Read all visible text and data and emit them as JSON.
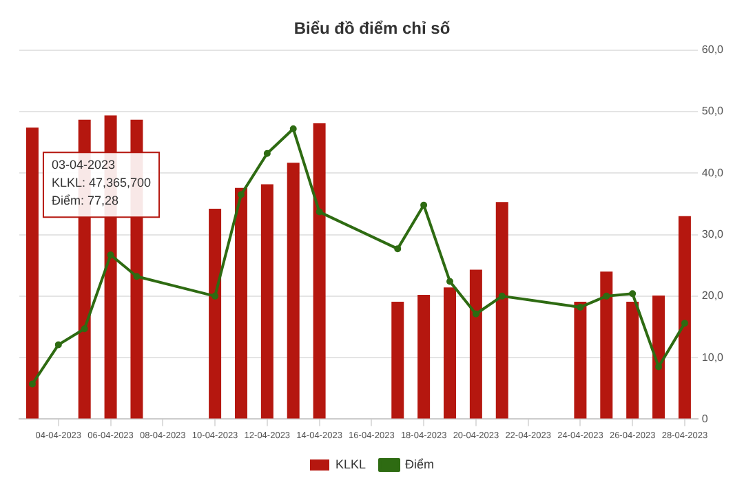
{
  "chart_data": {
    "type": "bar",
    "title": "Biểu đồ điểm chỉ số",
    "x": [
      "2023-04-03",
      "2023-04-04",
      "2023-04-05",
      "2023-04-06",
      "2023-04-07",
      "2023-04-10",
      "2023-04-11",
      "2023-04-12",
      "2023-04-13",
      "2023-04-14",
      "2023-04-17",
      "2023-04-18",
      "2023-04-19",
      "2023-04-20",
      "2023-04-21",
      "2023-04-24",
      "2023-04-25",
      "2023-04-26",
      "2023-04-27",
      "2023-04-28"
    ],
    "series": [
      {
        "name": "KLKL",
        "color": "#b5170f",
        "values": [
          47.4,
          null,
          48.7,
          49.4,
          48.7,
          34.2,
          37.6,
          38.2,
          41.7,
          48.1,
          19.1,
          20.2,
          21.4,
          24.3,
          35.3,
          19.1,
          24.0,
          19.1,
          20.1,
          33.0
        ]
      },
      {
        "name": "Điểm",
        "type": "line",
        "color": "#2e6b12",
        "marker": "circle",
        "values": [
          5.7,
          12.1,
          14.7,
          26.7,
          23.2,
          20.0,
          36.5,
          43.2,
          47.2,
          33.7,
          27.7,
          34.8,
          22.4,
          17.1,
          20.0,
          18.2,
          20.0,
          20.4,
          8.5,
          15.6
        ]
      }
    ],
    "xlim": [
      "2023-04-02T12:00",
      "2023-04-28T12:00"
    ],
    "xticks": [
      {
        "value": "2023-04-04",
        "label": "04-04-2023"
      },
      {
        "value": "2023-04-06",
        "label": "06-04-2023"
      },
      {
        "value": "2023-04-08",
        "label": "08-04-2023"
      },
      {
        "value": "2023-04-10",
        "label": "10-04-2023"
      },
      {
        "value": "2023-04-12",
        "label": "12-04-2023"
      },
      {
        "value": "2023-04-14",
        "label": "14-04-2023"
      },
      {
        "value": "2023-04-16",
        "label": "16-04-2023"
      },
      {
        "value": "2023-04-18",
        "label": "18-04-2023"
      },
      {
        "value": "2023-04-20",
        "label": "20-04-2023"
      },
      {
        "value": "2023-04-22",
        "label": "22-04-2023"
      },
      {
        "value": "2023-04-24",
        "label": "24-04-2023"
      },
      {
        "value": "2023-04-26",
        "label": "26-04-2023"
      },
      {
        "value": "2023-04-28",
        "label": "28-04-2023"
      }
    ],
    "ylim": [
      0,
      60
    ],
    "yticks": [
      0,
      {
        "value": 10,
        "label": "10,0"
      },
      {
        "value": 20,
        "label": "20,0"
      },
      {
        "value": 30,
        "label": "30,0"
      },
      {
        "value": 40,
        "label": "40,0"
      },
      {
        "value": 50,
        "label": "50,0"
      },
      {
        "value": 60,
        "label": "60,0"
      }
    ],
    "grid": "y",
    "legend": "bottom",
    "annotations": [
      {
        "text": "03-04-2023",
        "x": "2023-04-03",
        "y": 47.4
      },
      "KLKL: 47,365,700",
      "Điểm: 77,28"
    ]
  }
}
